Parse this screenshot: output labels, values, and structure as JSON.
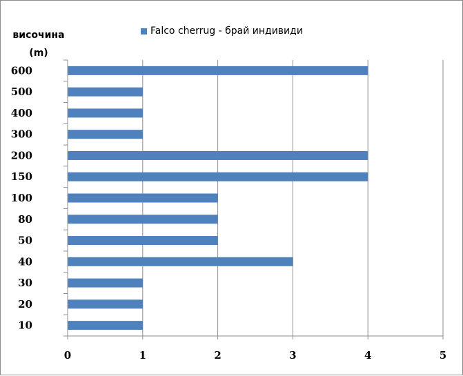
{
  "chart_data": {
    "type": "bar",
    "orientation": "horizontal",
    "ylabel_lines": [
      "височина",
      "(m)"
    ],
    "categories": [
      "10",
      "20",
      "30",
      "40",
      "50",
      "80",
      "100",
      "150",
      "200",
      "300",
      "400",
      "500",
      "600"
    ],
    "series": [
      {
        "name": "Falco cherrug - брай индивиди",
        "values": [
          1,
          1,
          1,
          3,
          2,
          2,
          2,
          4,
          4,
          1,
          1,
          1,
          4
        ]
      }
    ],
    "xlim": [
      0,
      5
    ],
    "xticks": [
      "0",
      "1",
      "2",
      "3",
      "4",
      "5"
    ],
    "grid": "vertical",
    "legend": "top",
    "colors": {
      "bar": "#4f81bd",
      "grid": "#8c8c8c",
      "axis": "#8c8c8c"
    }
  }
}
